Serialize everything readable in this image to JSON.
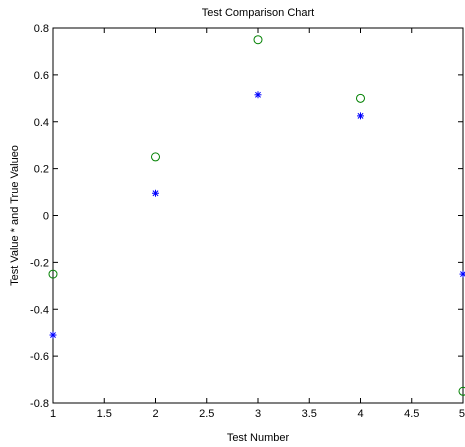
{
  "chart_data": {
    "type": "scatter",
    "title": "Test Comparison Chart",
    "xlabel": "Test Number",
    "ylabel": "Test Value * and True Valueo",
    "xlim": [
      1,
      5
    ],
    "ylim": [
      -0.8,
      0.8
    ],
    "xticks": [
      "1",
      "1.5",
      "2",
      "2.5",
      "3",
      "3.5",
      "4",
      "4.5",
      "5"
    ],
    "yticks": [
      "-0.8",
      "-0.6",
      "-0.4",
      "-0.2",
      "0",
      "0.2",
      "0.4",
      "0.6",
      "0.8"
    ],
    "grid": false,
    "series": [
      {
        "marker": "star",
        "color": "#0000ff",
        "x": [
          1,
          2,
          3,
          4,
          5
        ],
        "y": [
          -0.51,
          0.095,
          0.515,
          0.425,
          -0.25
        ]
      },
      {
        "marker": "circle",
        "color": "#008000",
        "x": [
          1,
          2,
          3,
          4,
          5
        ],
        "y": [
          -0.25,
          0.25,
          0.75,
          0.5,
          -0.75
        ]
      }
    ]
  }
}
